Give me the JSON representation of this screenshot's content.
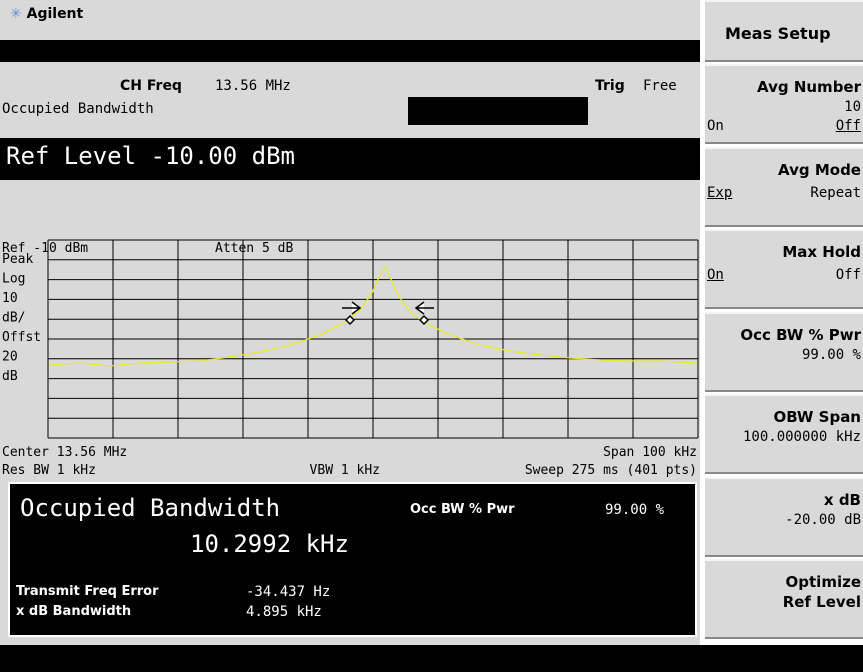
{
  "header": {
    "brand": "Agilent"
  },
  "status": {
    "ch_freq_label": "CH Freq",
    "ch_freq": "13.56 MHz",
    "trig_label": "Trig",
    "trig": "Free",
    "measurement": "Occupied Bandwidth"
  },
  "ref_level": "Ref Level -10.00 dBm",
  "graticule": {
    "ref": "Ref -10 dBm",
    "atten": "Atten 5 dB",
    "scale_labels": [
      "Peak",
      "Log",
      "10",
      "dB/",
      "Offst",
      "20",
      "dB"
    ],
    "center": "Center 13.56 MHz",
    "span": "Span 100 kHz",
    "res_bw": "Res BW 1 kHz",
    "vbw": "VBW 1 kHz",
    "sweep": "Sweep 275 ms (401 pts)"
  },
  "results": {
    "title": "Occupied Bandwidth",
    "bandwidth": "10.2992 kHz",
    "occ_bw_label": "Occ BW % Pwr",
    "occ_bw": "99.00 %",
    "rows": [
      [
        "Transmit Freq Error",
        "-34.437 Hz"
      ],
      [
        "x dB Bandwidth",
        "4.895 kHz"
      ]
    ]
  },
  "softkeys": {
    "title": "Meas Setup",
    "keys": [
      {
        "label": "Avg Number",
        "value": "10",
        "options": [
          "On",
          "Off"
        ],
        "selected": 1
      },
      {
        "label": "Avg Mode",
        "options": [
          "Exp",
          "Repeat"
        ],
        "selected": 0
      },
      {
        "label": "Max Hold",
        "options": [
          "On",
          "Off"
        ],
        "selected": 0
      },
      {
        "label": "Occ BW % Pwr",
        "value": "99.00 %"
      },
      {
        "label": "OBW Span",
        "value": "100.000000 kHz"
      },
      {
        "label": "x dB",
        "value": "-20.00 dB"
      },
      {
        "label": "Optimize",
        "sublabel": "Ref Level"
      }
    ]
  }
}
